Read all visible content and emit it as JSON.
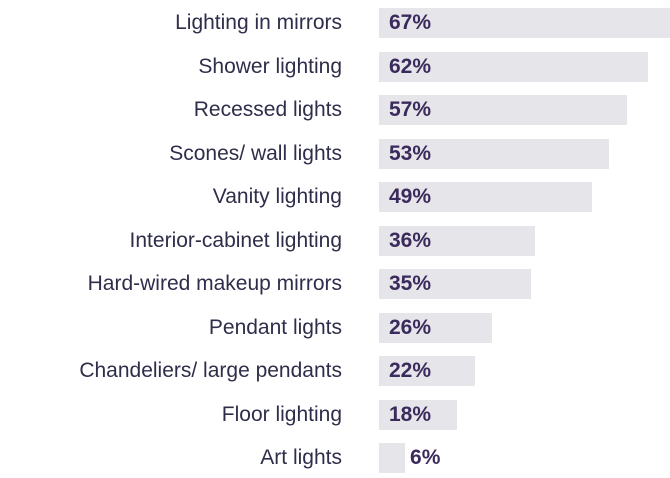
{
  "chart_data": {
    "type": "bar",
    "orientation": "horizontal",
    "categories": [
      "Lighting in mirrors",
      "Shower lighting",
      "Recessed lights",
      "Scones/ wall lights",
      "Vanity lighting",
      "Interior-cabinet lighting",
      "Hard-wired makeup mirrors",
      "Pendant lights",
      "Chandeliers/ large pendants",
      "Floor lighting",
      "Art lights"
    ],
    "values": [
      67,
      62,
      57,
      53,
      49,
      36,
      35,
      26,
      22,
      18,
      6
    ],
    "value_labels": [
      "67%",
      "62%",
      "57%",
      "53%",
      "49%",
      "36%",
      "35%",
      "26%",
      "22%",
      "18%",
      "6%"
    ],
    "unit": "%",
    "xlim": [
      0,
      67
    ],
    "grid": false,
    "legend": "none",
    "colors": {
      "bar": "#e6e6ea",
      "label": "#2e2e4a",
      "value": "#3b2a5c"
    }
  }
}
